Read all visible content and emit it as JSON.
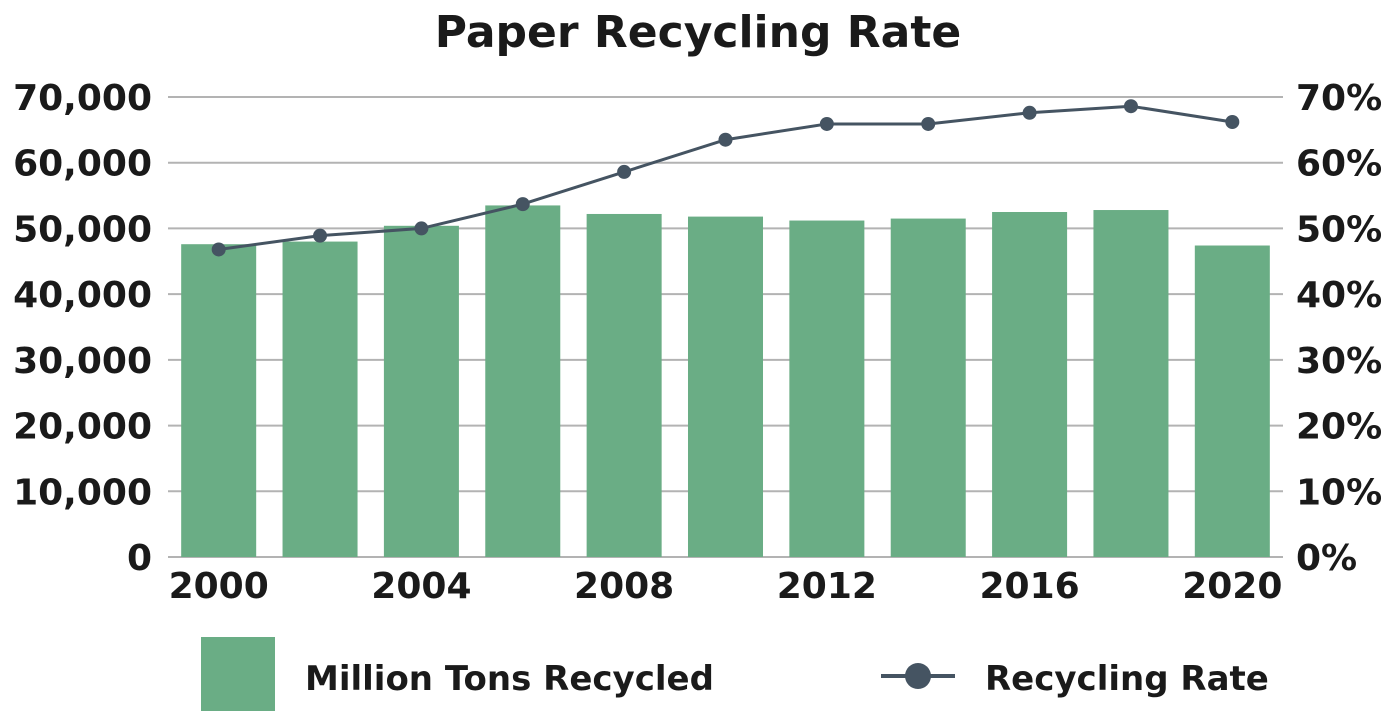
{
  "chart_data": {
    "type": "bar",
    "title": "Paper Recycling Rate",
    "x": [
      "2000",
      "2002",
      "2004",
      "2006",
      "2008",
      "2010",
      "2012",
      "2014",
      "2016",
      "2018",
      "2020"
    ],
    "x_tick_labels": [
      "2000",
      "2004",
      "2008",
      "2012",
      "2016",
      "2020"
    ],
    "series": [
      {
        "name": "Million Tons Recycled",
        "type": "bar",
        "axis": "left",
        "color": "#6aad85",
        "values": [
          47600,
          48000,
          50400,
          53500,
          52200,
          51800,
          51200,
          51500,
          52500,
          52800,
          47400
        ]
      },
      {
        "name": "Recycling Rate",
        "type": "line",
        "axis": "right",
        "color": "#455462",
        "marker": "circle",
        "values": [
          46.8,
          48.9,
          50.0,
          53.7,
          58.6,
          63.5,
          65.9,
          65.9,
          67.6,
          68.6,
          66.2
        ]
      }
    ],
    "y_left": {
      "ylim": [
        0,
        70000
      ],
      "ticks": [
        0,
        10000,
        20000,
        30000,
        40000,
        50000,
        60000,
        70000
      ],
      "tick_labels": [
        "0",
        "10,000",
        "20,000",
        "30,000",
        "40,000",
        "50,000",
        "60,000",
        "70,000"
      ]
    },
    "y_right": {
      "ylim": [
        0,
        70
      ],
      "tick_labels": [
        "0%",
        "10%",
        "20%",
        "30%",
        "40%",
        "50%",
        "60%",
        "70%"
      ]
    },
    "grid": true,
    "grid_color": "#b3b3b3",
    "legend_position": "bottom"
  }
}
